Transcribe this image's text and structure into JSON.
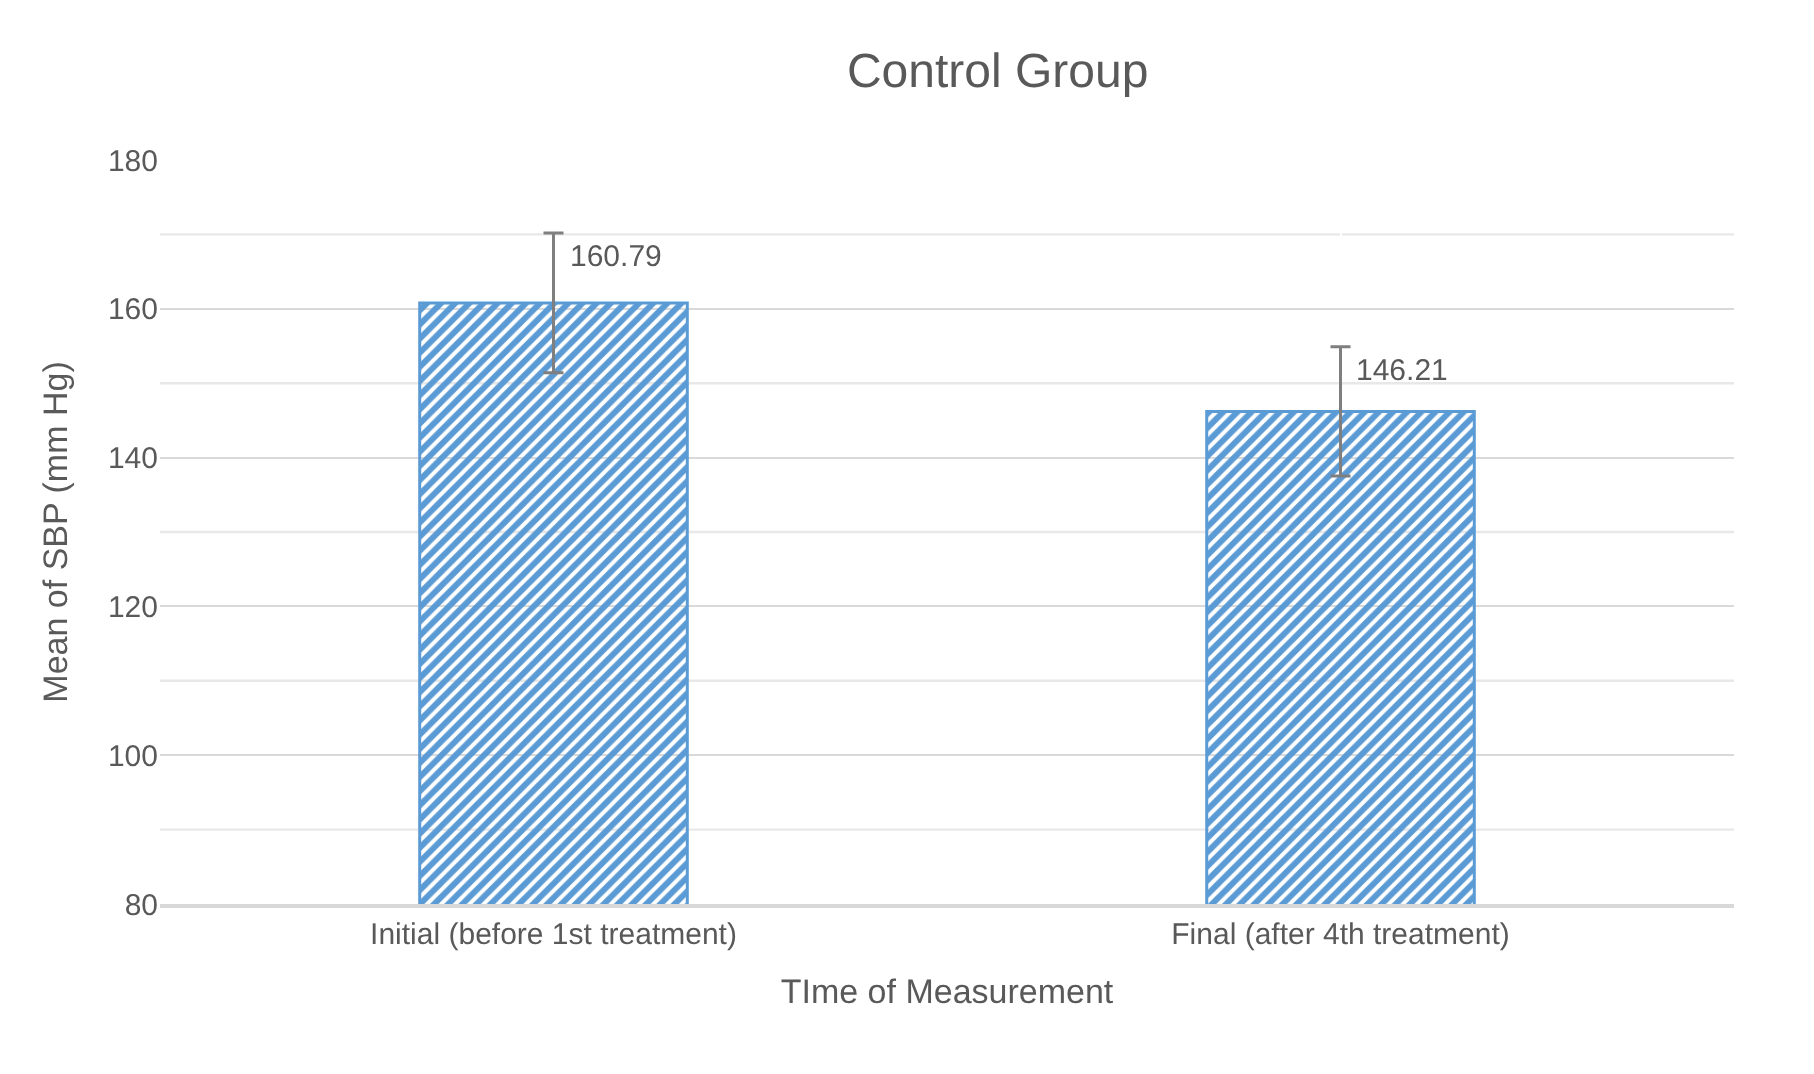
{
  "chart_data": {
    "type": "bar",
    "title": "Control Group",
    "xlabel": "TIme of Measurement",
    "ylabel": "Mean of SBP (mm Hg)",
    "categories": [
      "Initial (before 1st treatment)",
      "Final (after 4th treatment)"
    ],
    "values": [
      160.79,
      146.21
    ],
    "color": "#5b9bd5",
    "errors": [
      9.4,
      8.7
    ],
    "data_labels": true,
    "ylim": [
      80,
      180
    ],
    "yticks": [
      80,
      {
        "value": 90,
        "label": null
      },
      100,
      {
        "value": 110,
        "label": null
      },
      120,
      {
        "value": 130,
        "label": null
      },
      140,
      {
        "value": 150,
        "label": null
      },
      160,
      {
        "value": 170,
        "label": null
      },
      180
    ],
    "grid": true,
    "legend": false
  }
}
